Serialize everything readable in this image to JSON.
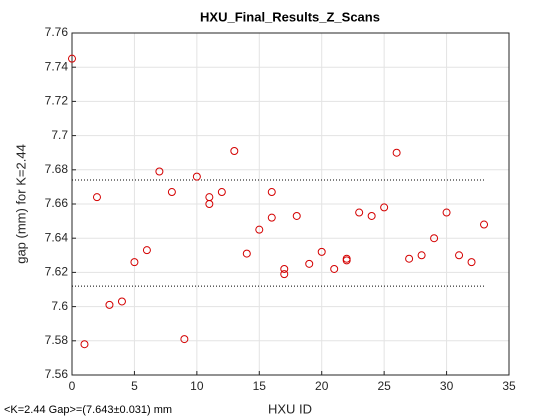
{
  "chart_data": {
    "type": "scatter",
    "title": "HXU_Final_Results_Z_Scans",
    "x_label": "HXU ID",
    "y_label": "gap (mm) for K=2.44",
    "annotation": "<K=2.44 Gap>=(7.643±0.031) mm",
    "color": "#d40000",
    "x": [
      0,
      1,
      2,
      3,
      4,
      5,
      6,
      7,
      8,
      9,
      10,
      11,
      11,
      12,
      13,
      14,
      15,
      16,
      16,
      17,
      17,
      18,
      19,
      20,
      21,
      22,
      22,
      23,
      24,
      25,
      26,
      27,
      28,
      29,
      30,
      31,
      32,
      33
    ],
    "values": [
      7.745,
      7.578,
      7.664,
      7.601,
      7.603,
      7.626,
      7.633,
      7.679,
      7.667,
      7.581,
      7.676,
      7.664,
      7.66,
      7.667,
      7.691,
      7.631,
      7.645,
      7.667,
      7.652,
      7.622,
      7.619,
      7.653,
      7.625,
      7.632,
      7.622,
      7.628,
      7.627,
      7.655,
      7.653,
      7.658,
      7.69,
      7.628,
      7.63,
      7.64,
      7.655,
      7.63,
      7.626,
      7.648
    ],
    "reference_lines": [
      {
        "value": 7.674,
        "x_range": [
          0,
          33
        ]
      },
      {
        "value": 7.612,
        "x_range": [
          0,
          33
        ]
      }
    ],
    "xlim": [
      0,
      35
    ],
    "xticks": [
      0,
      5,
      10,
      15,
      20,
      25,
      30,
      35
    ],
    "ylim": [
      7.56,
      7.76
    ],
    "yticks": [
      7.56,
      7.58,
      7.6,
      7.62,
      7.64,
      7.66,
      7.68,
      7.7,
      7.72,
      7.74,
      7.76
    ],
    "grid": true
  }
}
